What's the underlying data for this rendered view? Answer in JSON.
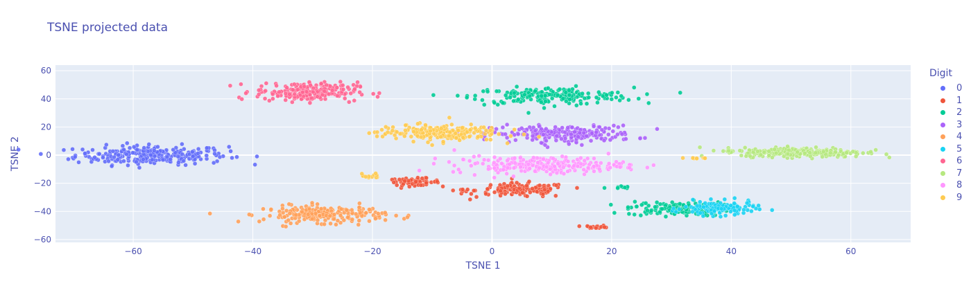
{
  "chart_data": {
    "type": "scatter",
    "title": "TSNE projected data",
    "xlabel": "TSNE 1",
    "ylabel": "TSNE 2",
    "xlim": [
      -73,
      70
    ],
    "ylim": [
      -62,
      64
    ],
    "x_ticks": [
      -60,
      -40,
      -20,
      0,
      20,
      40,
      60
    ],
    "y_ticks": [
      -60,
      -40,
      -20,
      0,
      20,
      40,
      60
    ],
    "x_tick_labels": [
      "−60",
      "−40",
      "−20",
      "0",
      "20",
      "40",
      "60"
    ],
    "y_tick_labels": [
      "−60",
      "−40",
      "−20",
      "0",
      "20",
      "40",
      "60"
    ],
    "grid": true,
    "legend_title": "Digit",
    "legend_position": "right",
    "series": [
      {
        "name": "0",
        "color": "#636efa",
        "clusters": [
          {
            "cx": -57,
            "cy": 0,
            "sx": 7.5,
            "sy": 4,
            "n": 260
          }
        ]
      },
      {
        "name": "1",
        "color": "#ef553b",
        "clusters": [
          {
            "cx": -13,
            "cy": -19,
            "sx": 2.5,
            "sy": 1.5,
            "n": 60
          },
          {
            "cx": 5,
            "cy": -25,
            "sx": 4.5,
            "sy": 3,
            "n": 140
          },
          {
            "cx": 17.5,
            "cy": -51,
            "sx": 1.2,
            "sy": 0.6,
            "n": 20
          },
          {
            "cx": -5,
            "cy": -25,
            "sx": 0.8,
            "sy": 0.5,
            "n": 6
          }
        ]
      },
      {
        "name": "2",
        "color": "#00cc96",
        "clusters": [
          {
            "cx": 10,
            "cy": 42,
            "sx": 8,
            "sy": 3.5,
            "n": 200
          },
          {
            "cx": 21,
            "cy": -23,
            "sx": 1.2,
            "sy": 0.6,
            "n": 8
          },
          {
            "cx": 31,
            "cy": -38,
            "sx": 5,
            "sy": 3,
            "n": 140
          }
        ]
      },
      {
        "name": "3",
        "color": "#ab63fa",
        "clusters": [
          {
            "cx": 12,
            "cy": 15,
            "sx": 7,
            "sy": 3.5,
            "n": 220
          }
        ]
      },
      {
        "name": "4",
        "color": "#ffa15a",
        "clusters": [
          {
            "cx": -28,
            "cy": -42,
            "sx": 6,
            "sy": 3.5,
            "n": 220
          }
        ]
      },
      {
        "name": "5",
        "color": "#19d3f3",
        "clusters": [
          {
            "cx": 38,
            "cy": -38,
            "sx": 3.5,
            "sy": 3,
            "n": 120
          }
        ]
      },
      {
        "name": "6",
        "color": "#ff6692",
        "clusters": [
          {
            "cx": -31,
            "cy": 45,
            "sx": 5,
            "sy": 4,
            "n": 220
          }
        ]
      },
      {
        "name": "7",
        "color": "#b6e880",
        "clusters": [
          {
            "cx": 52,
            "cy": 2,
            "sx": 6,
            "sy": 2,
            "n": 260
          },
          {
            "cx": 40,
            "cy": 3,
            "sx": 1.5,
            "sy": 0.6,
            "n": 10
          }
        ]
      },
      {
        "name": "8",
        "color": "#ff97ff",
        "clusters": [
          {
            "cx": 8,
            "cy": -7,
            "sx": 8.5,
            "sy": 3.5,
            "n": 240
          }
        ]
      },
      {
        "name": "9",
        "color": "#fecb52",
        "clusters": [
          {
            "cx": -9,
            "cy": 16,
            "sx": 6,
            "sy": 3.5,
            "n": 200
          },
          {
            "cx": -20,
            "cy": -15,
            "sx": 1,
            "sy": 1,
            "n": 12
          },
          {
            "cx": 34,
            "cy": -2,
            "sx": 1.5,
            "sy": 0.5,
            "n": 8
          }
        ]
      }
    ]
  }
}
